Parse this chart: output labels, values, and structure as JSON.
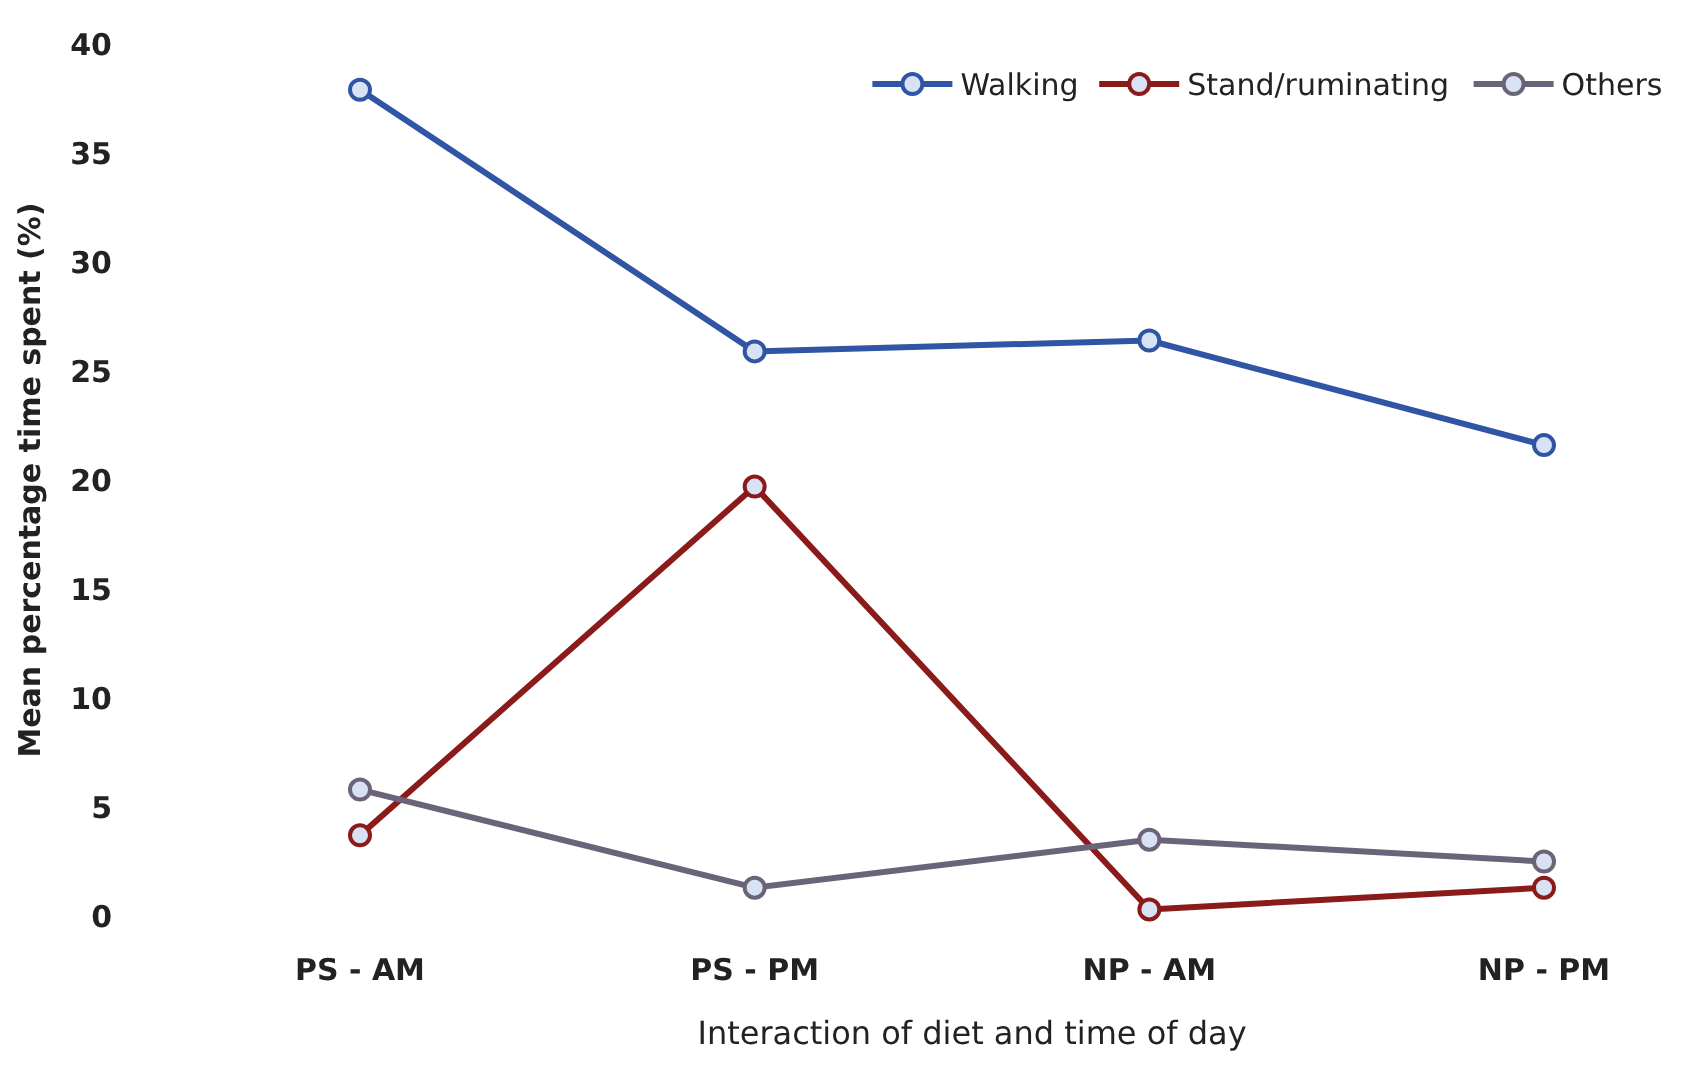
{
  "chart_data": {
    "type": "line",
    "xlabel": "Interaction of diet and time of day",
    "ylabel": "Mean percentage time spent (%)",
    "categories": [
      "PS - AM",
      "PS - PM",
      "NP - AM",
      "NP - PM"
    ],
    "series": [
      {
        "name": "Walking",
        "color": "#2f55a4",
        "values": [
          37.9,
          25.9,
          26.4,
          21.6
        ]
      },
      {
        "name": "Stand/ruminating",
        "color": "#8b1a1a",
        "values": [
          3.7,
          19.7,
          0.3,
          1.3
        ]
      },
      {
        "name": "Others",
        "color": "#6b6378",
        "values": [
          5.8,
          1.3,
          3.5,
          2.5
        ]
      }
    ],
    "ylim": [
      0,
      40
    ],
    "yticks": [
      0,
      5,
      10,
      15,
      20,
      25,
      30,
      35,
      40
    ],
    "grid": false,
    "legend": "top right",
    "marker": "circle",
    "line_style": "solid"
  }
}
